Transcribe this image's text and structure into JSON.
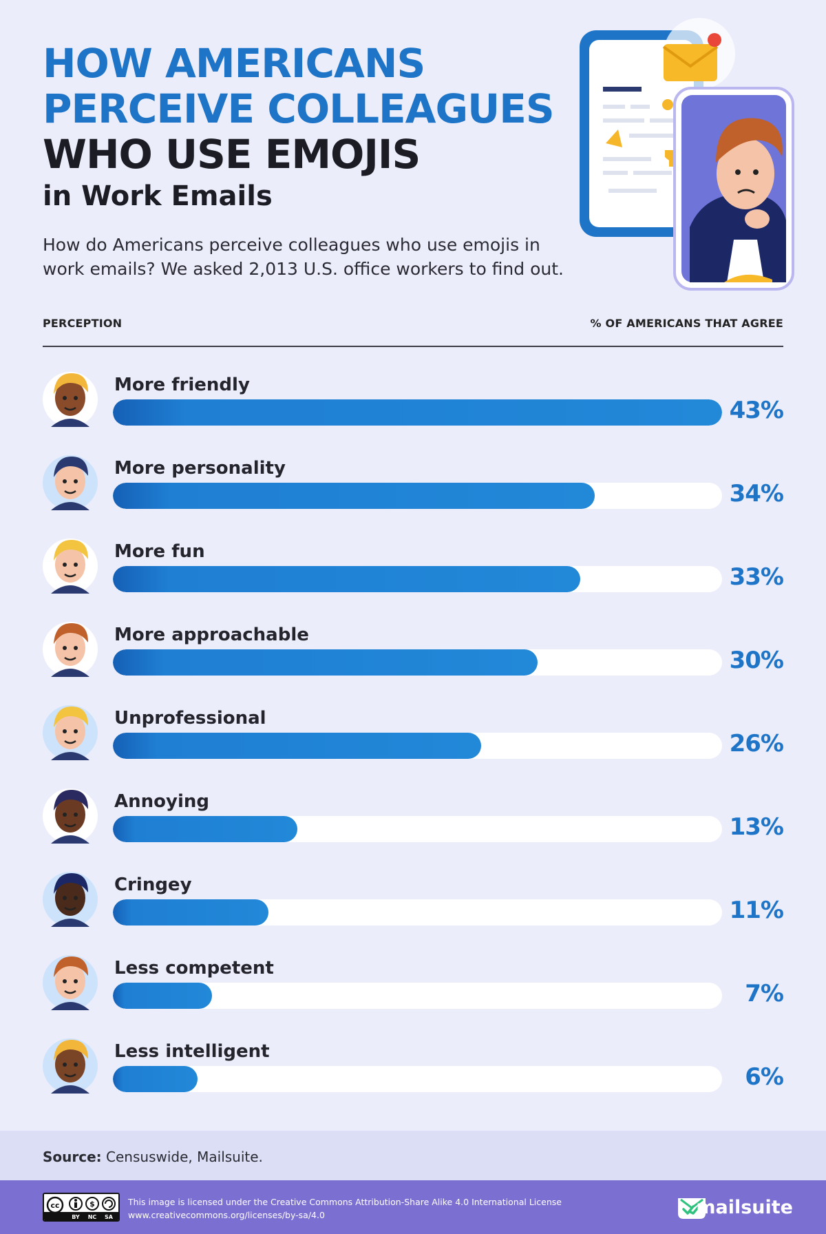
{
  "header": {
    "title_line1": "HOW AMERICANS",
    "title_line2": "PERCEIVE COLLEAGUES",
    "title_line3": "WHO USE EMOJIS",
    "title_line4": "in Work Emails",
    "intro": "How do Americans perceive colleagues who use emojis in work emails? We asked 2,013 U.S. office workers to find out."
  },
  "columns": {
    "left": "PERCEPTION",
    "right": "% OF AMERICANS THAT AGREE"
  },
  "chart_data": {
    "type": "bar",
    "orientation": "horizontal",
    "categories": [
      "More friendly",
      "More personality",
      "More fun",
      "More approachable",
      "Unprofessional",
      "Annoying",
      "Cringey",
      "Less competent",
      "Less intelligent"
    ],
    "values": [
      43,
      34,
      33,
      30,
      26,
      13,
      11,
      7,
      6
    ],
    "value_labels": [
      "43%",
      "34%",
      "33%",
      "30%",
      "26%",
      "13%",
      "11%",
      "7%",
      "6%"
    ],
    "xlim": [
      0,
      43
    ],
    "unit": "%",
    "grid": false,
    "legend": "none",
    "colors": {
      "bar": "#2288d8",
      "track": "#ffffff",
      "value_text": "#1e74c6"
    }
  },
  "avatars": [
    "woman-blonde-avatar",
    "man-dark-hair-avatar",
    "party-hat-avatar",
    "waving-glasses-avatar",
    "thinking-blonde-avatar",
    "annoyed-curly-avatar",
    "bearded-man-avatar",
    "winking-redhead-avatar",
    "worried-woman-avatar"
  ],
  "source": {
    "label": "Source:",
    "text": " Censuswide, Mailsuite."
  },
  "footer": {
    "cc_badge": [
      "BY",
      "NC",
      "SA"
    ],
    "license_line1": "This image is licensed under the Creative Commons Attribution-Share Alike 4.0 International License",
    "license_line2": "www.creativecommons.org/licenses/by-sa/4.0",
    "brand": "mailsuite"
  },
  "colors": {
    "background": "#ecedfb",
    "title_blue": "#1e74c6",
    "title_dark": "#1c1c24",
    "footer": "#7b6fd2"
  }
}
